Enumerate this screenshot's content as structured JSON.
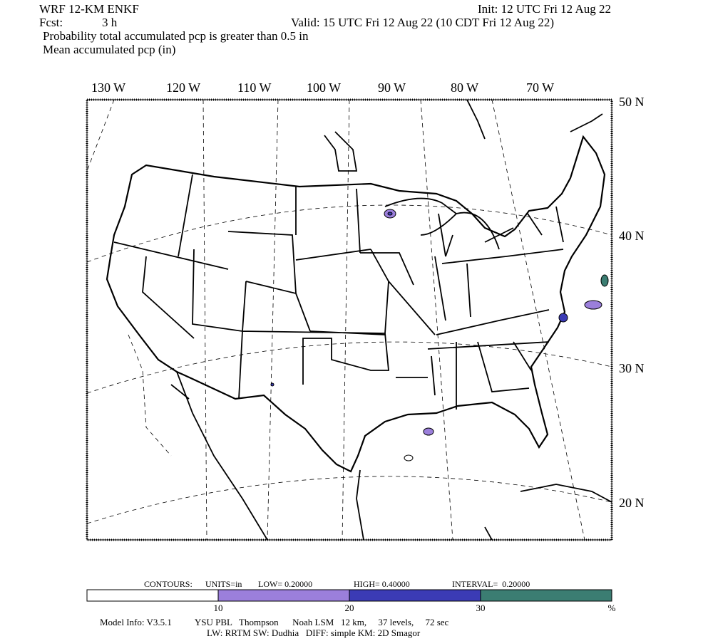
{
  "header": {
    "model": "WRF 12-KM ENKF",
    "init": "Init: 12 UTC Fri 12 Aug 22",
    "fcst_label": "Fcst:",
    "fcst": "3 h",
    "valid": "Valid: 15 UTC Fri 12 Aug 22 (10 CDT Fri 12 Aug 22)",
    "title": "Probability total accumulated pcp is greater than 0.5 in",
    "subtitle": "Mean accumulated pcp (in)"
  },
  "map": {
    "lon_labels": [
      "130 W",
      "120 W",
      "110 W",
      "100 W",
      "90 W",
      "80 W",
      "70 W"
    ],
    "lat_labels": [
      "50 N",
      "40 N",
      "30 N",
      "20 N"
    ]
  },
  "contours": {
    "label": "CONTOURS:",
    "units": "UNITS=in",
    "low": "LOW= 0.20000",
    "high": "HIGH= 0.40000",
    "interval": "INTERVAL=  0.20000"
  },
  "colorbar": {
    "colors": [
      "#ffffff",
      "#9b7fdb",
      "#3b3bb5",
      "#3b7d72"
    ],
    "labels": [
      "10",
      "20",
      "30",
      "%"
    ]
  },
  "footer": {
    "line1": "Model Info: V3.5.1          YSU PBL   Thompson      Noah LSM   12 km,     37 levels,     72 sec",
    "line2": "LW: RRTM SW: Dudhia   DIFF: simple KM: 2D Smagor"
  }
}
